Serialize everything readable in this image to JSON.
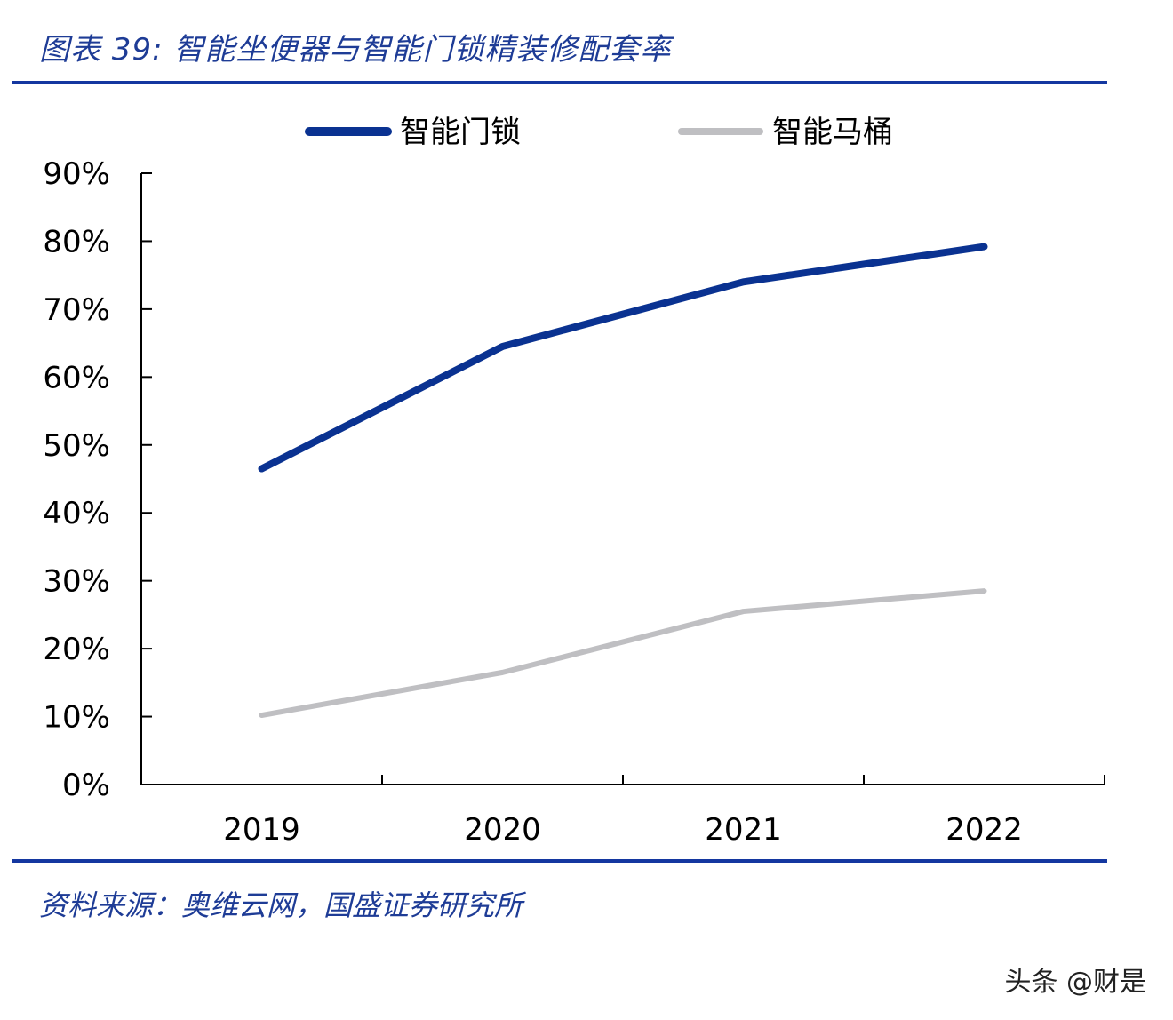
{
  "header": {
    "title": "图表 39:  智能坐便器与智能门锁精装修配套率"
  },
  "footer": {
    "source": "资料来源：奥维云网，国盛证券研究所",
    "watermark": "头条 @财是"
  },
  "colors": {
    "accent": "#1437a0",
    "series_lock": "#0a3291",
    "series_toilet": "#bfbfc2",
    "axis": "#000000"
  },
  "chart_data": {
    "type": "line",
    "title": "智能坐便器与智能门锁精装修配套率",
    "xlabel": "",
    "ylabel": "",
    "categories": [
      "2019",
      "2020",
      "2021",
      "2022"
    ],
    "ylim": [
      0,
      90
    ],
    "yticks": [
      0,
      10,
      20,
      30,
      40,
      50,
      60,
      70,
      80,
      90
    ],
    "ytick_labels": [
      "0%",
      "10%",
      "20%",
      "30%",
      "40%",
      "50%",
      "60%",
      "70%",
      "80%",
      "90%"
    ],
    "legend_position": "top-center",
    "grid": false,
    "series": [
      {
        "name": "智能门锁",
        "values": [
          46.5,
          64.5,
          74.0,
          79.2
        ]
      },
      {
        "name": "智能马桶",
        "values": [
          10.2,
          16.5,
          25.5,
          28.5
        ]
      }
    ]
  }
}
